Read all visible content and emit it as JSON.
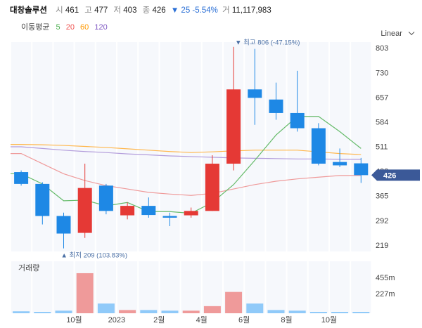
{
  "header": {
    "name": "대창솔루션",
    "open_label": "시",
    "open": "461",
    "high_label": "고",
    "high": "477",
    "low_label": "저",
    "low": "403",
    "close_label": "종",
    "close": "426",
    "change": "▼ 25 -5.54%",
    "volume_label": "거",
    "volume": "11,117,983"
  },
  "ma_legend": {
    "title": "이동평균",
    "items": [
      {
        "label": "5",
        "color": "#4caf50"
      },
      {
        "label": "20",
        "color": "#ef5350"
      },
      {
        "label": "60",
        "color": "#ff9800"
      },
      {
        "label": "120",
        "color": "#7e57c2"
      }
    ]
  },
  "scale": {
    "label": "Linear",
    "icon": "chevron-down-icon"
  },
  "price_badge": "426",
  "high_annotation": "▼ 최고 806 (-47.15%)",
  "low_annotation": "▲ 최저 209 (103.83%)",
  "volume_title": "거래량",
  "colors": {
    "up": "#e53935",
    "down": "#1e88e5",
    "badge": "#3b5998"
  },
  "chart_data": {
    "type": "candlestick",
    "y_ticks": [
      219,
      292,
      365,
      438,
      511,
      584,
      657,
      730,
      803
    ],
    "ylim": [
      200,
      820
    ],
    "x_tick_labels": [
      {
        "i": 2.5,
        "label": "10월"
      },
      {
        "i": 4.5,
        "label": "2023"
      },
      {
        "i": 6.5,
        "label": "2월"
      },
      {
        "i": 8.5,
        "label": "4월"
      },
      {
        "i": 10.5,
        "label": "6월"
      },
      {
        "i": 12.5,
        "label": "8월"
      },
      {
        "i": 14.5,
        "label": "10월"
      }
    ],
    "candles": [
      {
        "o": 435,
        "c": 400,
        "h": 440,
        "l": 395
      },
      {
        "o": 400,
        "c": 305,
        "h": 405,
        "l": 280
      },
      {
        "o": 305,
        "c": 253,
        "h": 315,
        "l": 209
      },
      {
        "o": 255,
        "c": 388,
        "h": 460,
        "l": 240
      },
      {
        "o": 395,
        "c": 320,
        "h": 400,
        "l": 310
      },
      {
        "o": 307,
        "c": 335,
        "h": 345,
        "l": 295
      },
      {
        "o": 335,
        "c": 308,
        "h": 360,
        "l": 300
      },
      {
        "o": 305,
        "c": 300,
        "h": 315,
        "l": 275
      },
      {
        "o": 307,
        "c": 320,
        "h": 330,
        "l": 300
      },
      {
        "o": 320,
        "c": 460,
        "h": 485,
        "l": 320
      },
      {
        "o": 460,
        "c": 680,
        "h": 806,
        "l": 440
      },
      {
        "o": 680,
        "c": 655,
        "h": 800,
        "l": 575
      },
      {
        "o": 650,
        "c": 610,
        "h": 700,
        "l": 590
      },
      {
        "o": 610,
        "c": 565,
        "h": 735,
        "l": 555
      },
      {
        "o": 565,
        "c": 460,
        "h": 580,
        "l": 455
      },
      {
        "o": 465,
        "c": 455,
        "h": 505,
        "l": 450
      },
      {
        "o": 461,
        "c": 426,
        "h": 477,
        "l": 403
      }
    ],
    "ma5": [
      430,
      400,
      350,
      352,
      335,
      345,
      318,
      318,
      313,
      345,
      398,
      470,
      545,
      600,
      600,
      555,
      505
    ],
    "ma20": [
      490,
      460,
      430,
      410,
      395,
      385,
      375,
      370,
      366,
      372,
      385,
      398,
      408,
      415,
      420,
      425,
      425
    ],
    "ma60": [
      517,
      516,
      514,
      511,
      508,
      504,
      500,
      496,
      493,
      495,
      498,
      500,
      500,
      500,
      495,
      490,
      487
    ],
    "ma120": [
      510,
      505,
      500,
      496,
      493,
      489,
      486,
      483,
      481,
      479,
      477,
      476,
      475,
      474,
      474,
      473,
      473
    ],
    "volume": [
      0.03,
      0.02,
      0.04,
      0.62,
      0.15,
      0.05,
      0.05,
      0.04,
      0.04,
      0.11,
      0.33,
      0.15,
      0.05,
      0.04,
      0.02,
      0.02,
      0.01
    ],
    "volume_ticks": [
      "455m",
      "227m"
    ]
  }
}
